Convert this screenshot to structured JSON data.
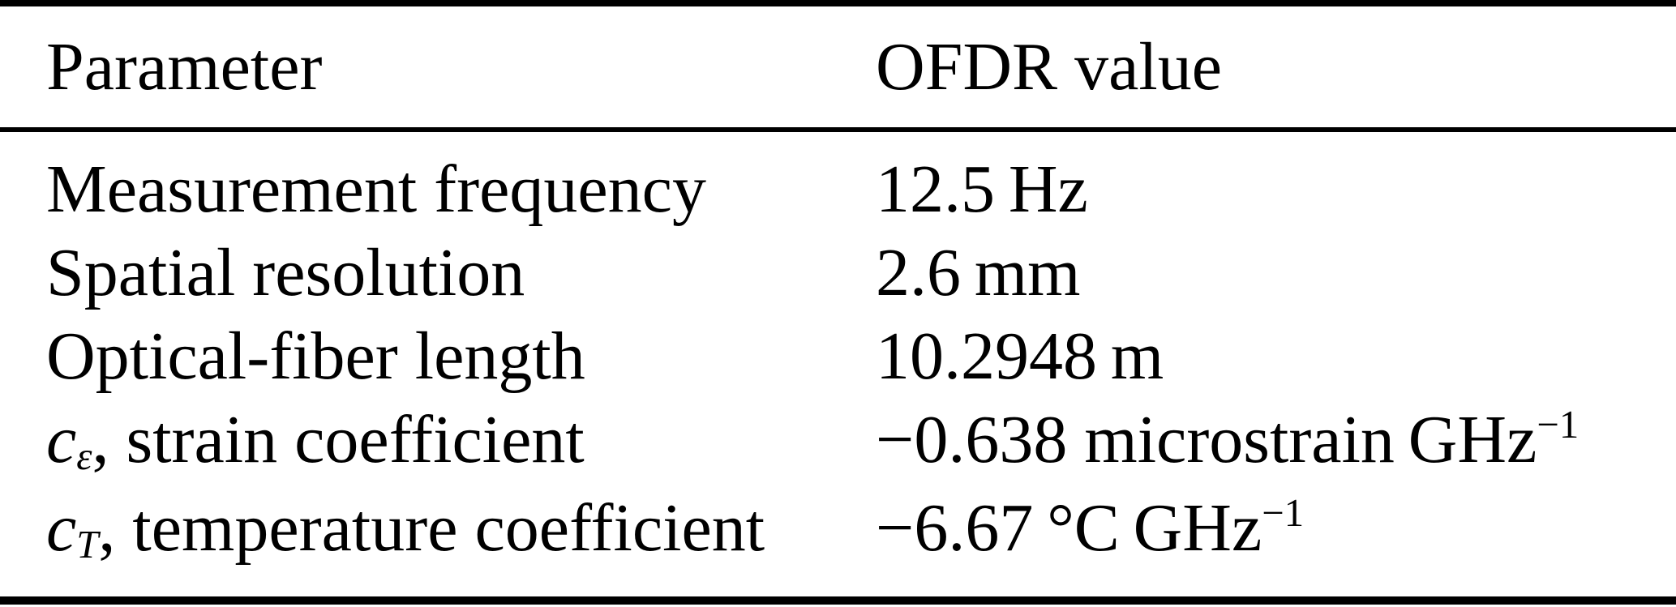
{
  "colors": {
    "text": "#000000",
    "background": "#ffffff",
    "rule": "#000000"
  },
  "table": {
    "columns": [
      {
        "label": "Parameter"
      },
      {
        "label": "OFDR value"
      }
    ],
    "rows": [
      {
        "param": "Measurement frequency",
        "value": "12.5 Hz"
      },
      {
        "param": "Spatial resolution",
        "value": "2.6 mm"
      },
      {
        "param": "Optical-fiber length",
        "value": "10.2948 m"
      },
      {
        "symbol": "c",
        "symbol_sub": "ε",
        "param_rest": ", strain coefficient",
        "value_main": "−0.638 microstrain GHz",
        "value_sup": "−1"
      },
      {
        "symbol": "c",
        "symbol_sub": "T",
        "param_rest": ", temperature coefficient",
        "value_main": "−6.67 °C GHz",
        "value_sup": "−1"
      }
    ]
  }
}
